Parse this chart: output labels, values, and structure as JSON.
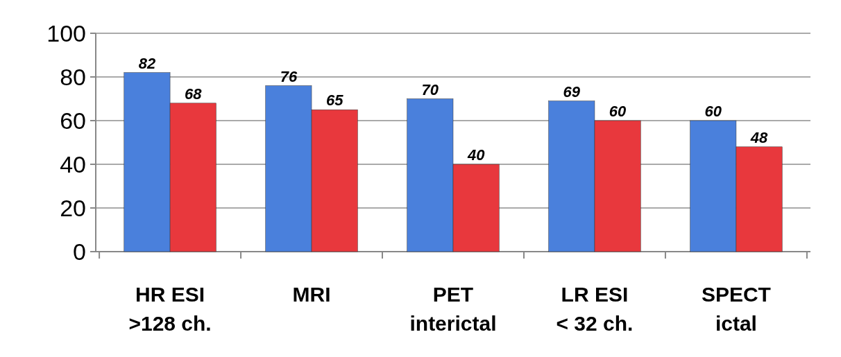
{
  "chart_data": {
    "type": "bar",
    "categories": [
      "HR ESI\n>128 ch.",
      "MRI",
      "PET\ninterictal",
      "LR ESI\n< 32 ch.",
      "SPECT\nictal"
    ],
    "series": [
      {
        "color": "#4a80dc",
        "values": [
          82,
          76,
          70,
          69,
          60
        ]
      },
      {
        "color": "#e8383d",
        "values": [
          68,
          65,
          40,
          60,
          48
        ]
      }
    ],
    "ylim": [
      0,
      100
    ],
    "yticks": [
      0,
      20,
      40,
      60,
      80,
      100
    ],
    "grid": "y",
    "data_labels": true
  }
}
